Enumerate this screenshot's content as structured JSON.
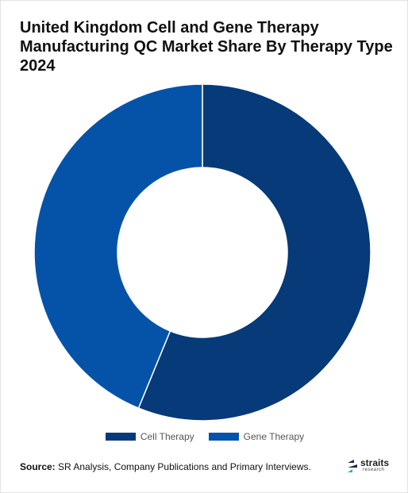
{
  "header": {
    "title": "United Kingdom Cell and Gene Therapy Manufacturing QC Market Share By Therapy Type 2024"
  },
  "chart_data": {
    "type": "pie",
    "donut": true,
    "title": "United Kingdom Cell and Gene Therapy Manufacturing QC Market Share By Therapy Type 2024",
    "categories": [
      "Cell Therapy",
      "Gene Therapy"
    ],
    "values": [
      56.2,
      43.8
    ],
    "colors": [
      "#063a78",
      "#0553a8"
    ],
    "legend_position": "bottom"
  },
  "footer": {
    "source_label": "Source:",
    "source_text": " SR Analysis, Company Publications and Primary Interviews."
  },
  "logo": {
    "name": "straits",
    "subtext": "research"
  }
}
